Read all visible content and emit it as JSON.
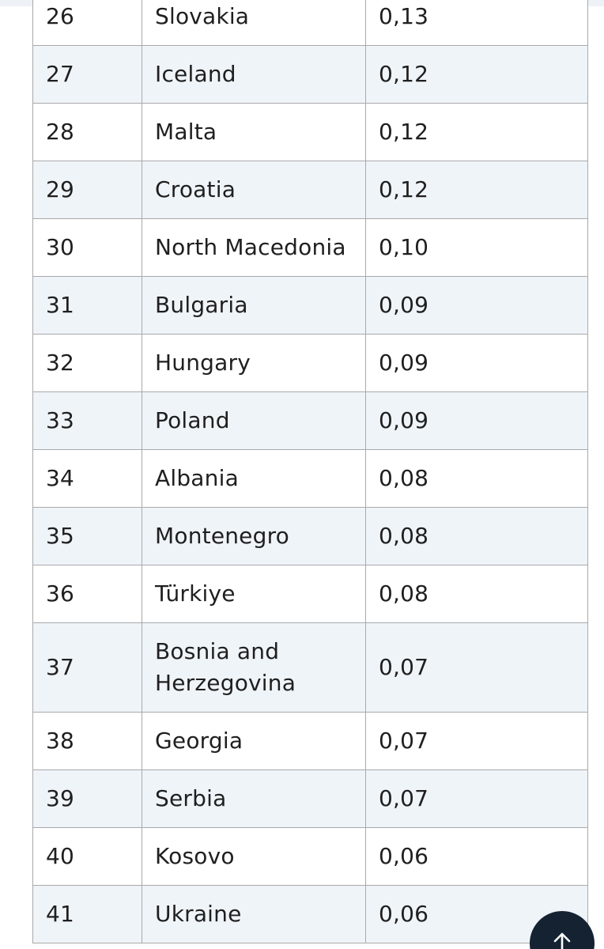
{
  "table": {
    "rows": [
      {
        "rank": "26",
        "country": "Slovakia",
        "value": "0,13"
      },
      {
        "rank": "27",
        "country": "Iceland",
        "value": "0,12"
      },
      {
        "rank": "28",
        "country": "Malta",
        "value": "0,12"
      },
      {
        "rank": "29",
        "country": "Croatia",
        "value": "0,12"
      },
      {
        "rank": "30",
        "country": "North Macedonia",
        "value": "0,10"
      },
      {
        "rank": "31",
        "country": "Bulgaria",
        "value": "0,09"
      },
      {
        "rank": "32",
        "country": "Hungary",
        "value": "0,09"
      },
      {
        "rank": "33",
        "country": "Poland",
        "value": "0,09"
      },
      {
        "rank": "34",
        "country": "Albania",
        "value": "0,08"
      },
      {
        "rank": "35",
        "country": "Montenegro",
        "value": "0,08"
      },
      {
        "rank": "36",
        "country": "Türkiye",
        "value": "0,08"
      },
      {
        "rank": "37",
        "country": "Bosnia and Herzegovina",
        "value": "0,07"
      },
      {
        "rank": "38",
        "country": "Georgia",
        "value": "0,07"
      },
      {
        "rank": "39",
        "country": "Serbia",
        "value": "0,07"
      },
      {
        "rank": "40",
        "country": "Kosovo",
        "value": "0,06"
      },
      {
        "rank": "41",
        "country": "Ukraine",
        "value": "0,06"
      }
    ]
  },
  "scroll_top": {
    "icon": "arrow-up-icon",
    "background": "#152232"
  },
  "colors": {
    "row_alt": "#eff4f9",
    "border": "#a9a9a9"
  }
}
